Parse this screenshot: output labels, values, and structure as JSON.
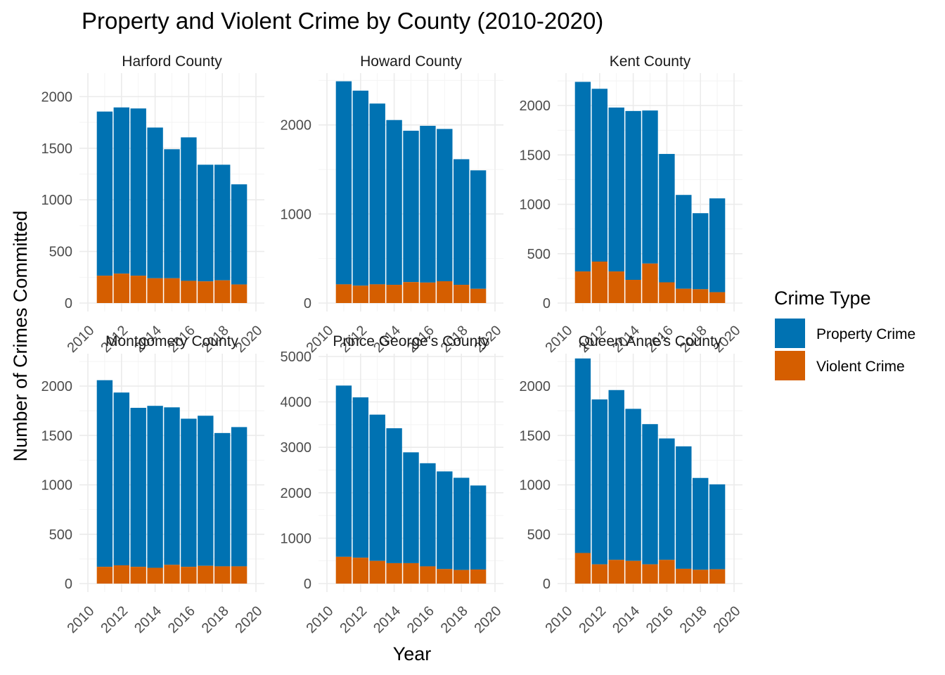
{
  "chart_data": {
    "type": "bar",
    "stacked": true,
    "title": "Property and Violent Crime by County (2010-2020)",
    "xlabel": "Year",
    "ylabel": "Number of Crimes Committed",
    "legend": {
      "title": "Crime Type",
      "placement": "right",
      "entries": [
        {
          "name": "Property Crime",
          "color": "#0072B2"
        },
        {
          "name": "Violent Crime",
          "color": "#D55E00"
        }
      ]
    },
    "x": [
      2011,
      2012,
      2013,
      2014,
      2015,
      2016,
      2017,
      2018,
      2019
    ],
    "xlim": [
      2010,
      2020
    ],
    "xticks": [
      "2010",
      "2012",
      "2014",
      "2016",
      "2018",
      "2020"
    ],
    "grid": true,
    "panels": [
      {
        "name": "Harford County",
        "ylim": [
          0,
          2200
        ],
        "yticks": [
          "0",
          "500",
          "1000",
          "1500",
          "2000"
        ],
        "series": [
          {
            "name": "Property Crime",
            "values": [
              1590,
              1610,
              1620,
              1460,
              1250,
              1390,
              1130,
              1120,
              970
            ]
          },
          {
            "name": "Violent Crime",
            "values": [
              265,
              285,
              265,
              240,
              240,
              215,
              210,
              220,
              180
            ]
          }
        ]
      },
      {
        "name": "Howard County",
        "ylim": [
          0,
          2550
        ],
        "yticks": [
          "0",
          "1000",
          "2000"
        ],
        "series": [
          {
            "name": "Property Crime",
            "values": [
              2280,
              2190,
              2030,
              1850,
              1700,
              1760,
              1710,
              1410,
              1330
            ]
          },
          {
            "name": "Violent Crime",
            "values": [
              210,
              195,
              210,
              205,
              235,
              230,
              245,
              205,
              160
            ]
          }
        ]
      },
      {
        "name": "Kent County",
        "ylim": [
          0,
          2300
        ],
        "yticks": [
          "0",
          "500",
          "1000",
          "1500",
          "2000"
        ],
        "series": [
          {
            "name": "Property Crime",
            "values": [
              1920,
              1750,
              1660,
              1710,
              1550,
              1300,
              950,
              770,
              950
            ]
          },
          {
            "name": "Violent Crime",
            "values": [
              320,
              420,
              320,
              235,
              400,
              210,
              145,
              140,
              110
            ]
          }
        ]
      },
      {
        "name": "Montgomery County",
        "ylim": [
          0,
          2300
        ],
        "yticks": [
          "0",
          "500",
          "1000",
          "1500",
          "2000"
        ],
        "series": [
          {
            "name": "Property Crime",
            "values": [
              1890,
              1750,
              1610,
              1640,
              1595,
              1500,
              1520,
              1350,
              1410
            ]
          },
          {
            "name": "Violent Crime",
            "values": [
              170,
              185,
              170,
              160,
              190,
              170,
              180,
              175,
              175
            ]
          }
        ]
      },
      {
        "name": "Prince George's County",
        "ylim": [
          0,
          5000
        ],
        "yticks": [
          "0",
          "1000",
          "2000",
          "3000",
          "4000",
          "5000"
        ],
        "series": [
          {
            "name": "Property Crime",
            "values": [
              3770,
              3530,
              3220,
              2970,
              2440,
              2270,
              2150,
              2030,
              1850
            ]
          },
          {
            "name": "Violent Crime",
            "values": [
              590,
              570,
              500,
              450,
              450,
              380,
              320,
              300,
              310
            ]
          }
        ]
      },
      {
        "name": "Queen Anne's County",
        "ylim": [
          0,
          2300
        ],
        "yticks": [
          "0",
          "500",
          "1000",
          "1500",
          "2000"
        ],
        "series": [
          {
            "name": "Property Crime",
            "values": [
              1970,
              1670,
              1720,
              1540,
              1420,
              1230,
              1240,
              930,
              860
            ]
          },
          {
            "name": "Violent Crime",
            "values": [
              310,
              195,
              240,
              230,
              195,
              240,
              150,
              140,
              145
            ]
          }
        ]
      }
    ]
  }
}
